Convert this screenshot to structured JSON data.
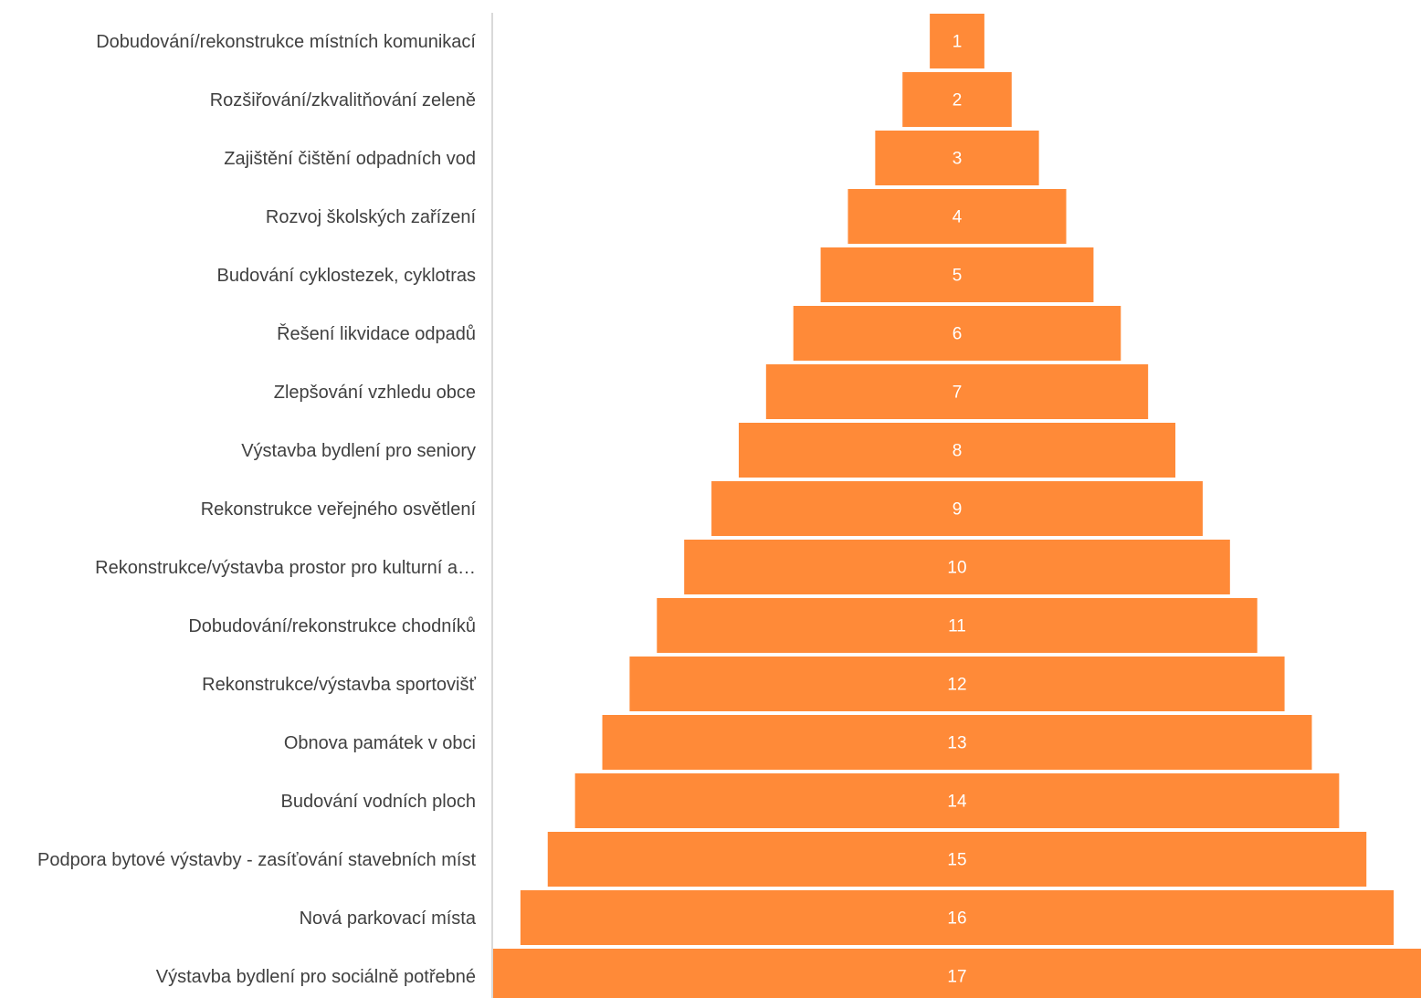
{
  "chart_data": {
    "type": "bar",
    "orientation": "horizontal",
    "style": "centered-pyramid",
    "categories": [
      "Dobudování/rekonstrukce místních komunikací",
      "Rozšiřování/zkvalitňování zeleně",
      "Zajištění čištění odpadních vod",
      "Rozvoj školských zařízení",
      "Budování cyklostezek, cyklotras",
      "Řešení likvidace odpadů",
      "Zlepšování vzhledu obce",
      "Výstavba bydlení pro seniory",
      "Rekonstrukce veřejného osvětlení",
      "Rekonstrukce/výstavba prostor pro kulturní a…",
      "Dobudování/rekonstrukce chodníků",
      "Rekonstrukce/výstavba sportovišť",
      "Obnova památek v obci",
      "Budování vodních ploch",
      "Podpora bytové výstavby - zasíťování stavebních míst",
      "Nová parkovací místa",
      "Výstavba bydlení pro sociálně potřebné"
    ],
    "values": [
      1,
      2,
      3,
      4,
      5,
      6,
      7,
      8,
      9,
      10,
      11,
      12,
      13,
      14,
      15,
      16,
      17
    ],
    "bar_color": "#FF8A38",
    "value_label_color": "#FFFFFF",
    "label_color": "#404040",
    "axis_color": "#D9D9D9",
    "grid": false,
    "legend": "none",
    "title": "",
    "xlabel": "",
    "ylabel": ""
  }
}
